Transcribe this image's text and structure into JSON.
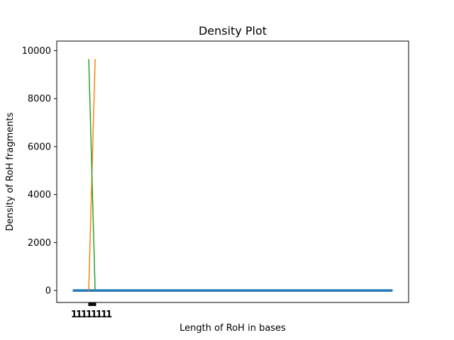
{
  "chart_data": {
    "type": "line",
    "title": "Density Plot",
    "xlabel": "Length of RoH in bases",
    "ylabel": "Density of RoH fragments",
    "ylim": [
      -500,
      10400
    ],
    "xlim": [
      -5,
      105
    ],
    "yticks": [
      0,
      2000,
      4000,
      6000,
      8000,
      10000
    ],
    "ytick_labels": [
      "0",
      "2000",
      "4000",
      "6000",
      "8000",
      "10000"
    ],
    "xtick_cluster_label": "11111111",
    "xtick_positions": [
      1,
      2,
      3,
      4,
      5,
      6,
      7,
      8,
      9,
      10,
      11,
      12
    ],
    "grid": false,
    "series": [
      {
        "color": "#1f77b4",
        "x": [
          0,
          100
        ],
        "y": [
          0,
          0
        ],
        "width": 3.5
      },
      {
        "color": "#ff7f0e",
        "x": [
          5,
          7
        ],
        "y": [
          0,
          9650
        ],
        "width": 1.5
      },
      {
        "color": "#2ca02c",
        "x": [
          5,
          7
        ],
        "y": [
          9650,
          0
        ],
        "width": 1.5
      }
    ]
  }
}
